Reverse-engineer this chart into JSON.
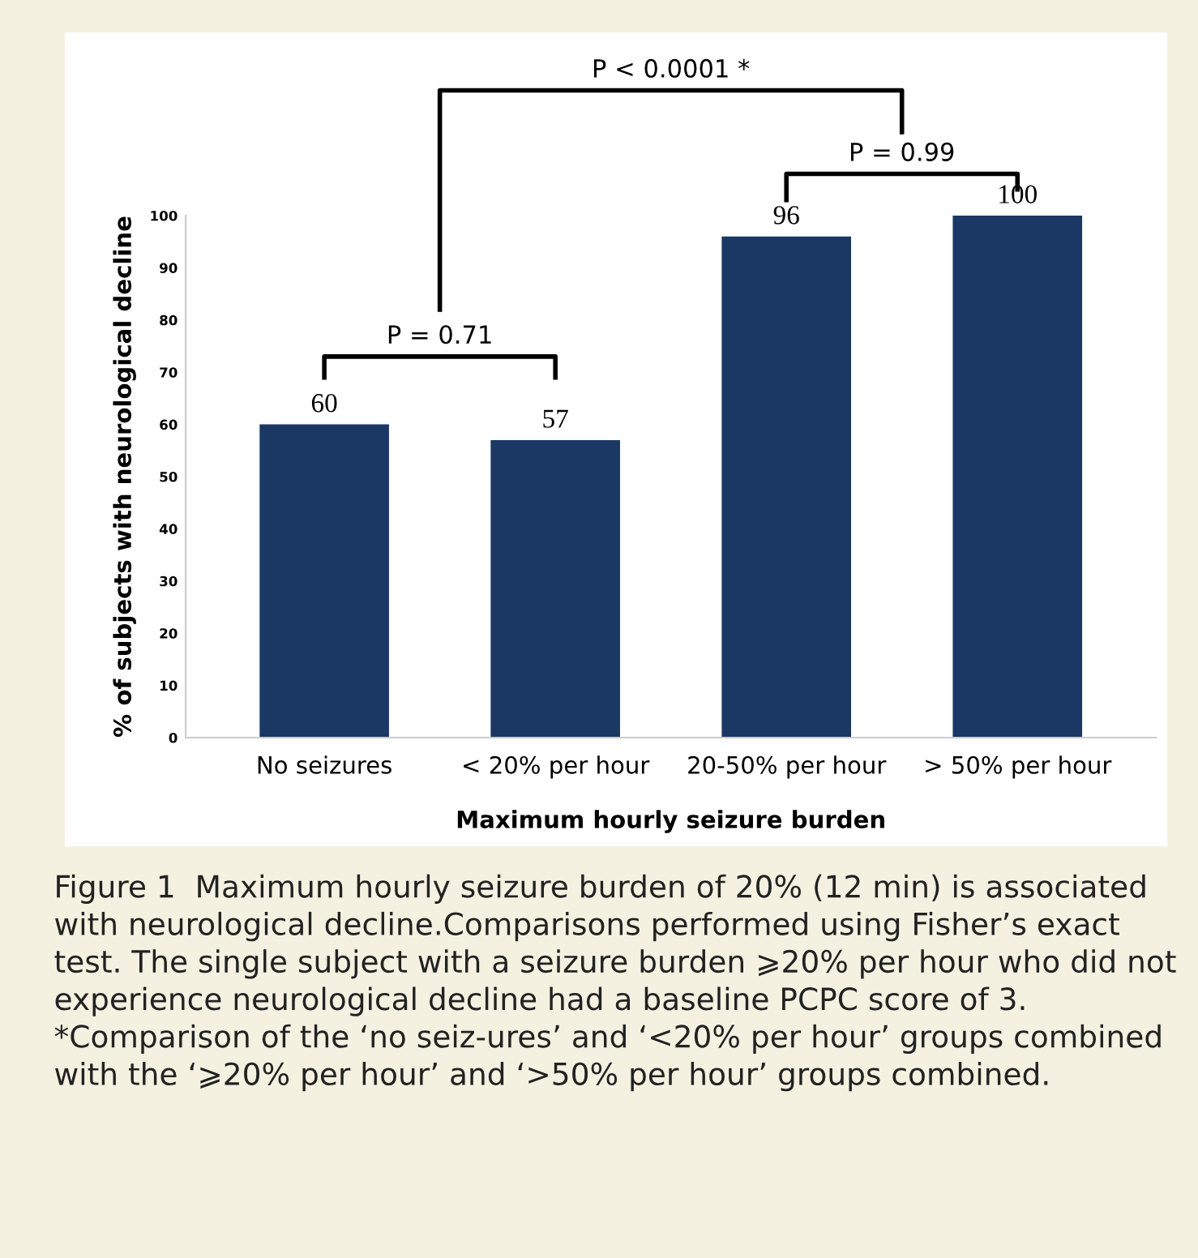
{
  "chart_data": {
    "type": "bar",
    "categories": [
      "No seizures",
      "< 20% per hour",
      "20-50% per hour",
      "> 50% per hour"
    ],
    "values": [
      60,
      57,
      96,
      100
    ],
    "color": "#1b3864",
    "data_labels": true,
    "xlabel": "Maximum hourly seizure burden",
    "ylabel": "% of subjects with neurological decline",
    "ylim": [
      0,
      100
    ],
    "yticks": [
      0,
      10,
      20,
      30,
      40,
      50,
      60,
      70,
      80,
      90,
      100
    ],
    "annotations": [
      "P = 0.71",
      "P = 0.99",
      "P < 0.0001 *",
      "Figure 1  Maximum hourly seizure burden of 20% (12 min) is associated with neurological decline.Comparisons performed using Fisher’s exact test. The single subject with a seizure burden ⩾20% per hour who did not experience neurological decline had a baseline PCPC score of 3. *Comparison of the ‘no seiz-ures’ and ‘<20% per hour’ groups combined with the ‘⩾20% per hour’ and ‘>50% per hour’ groups combined."
    ]
  }
}
